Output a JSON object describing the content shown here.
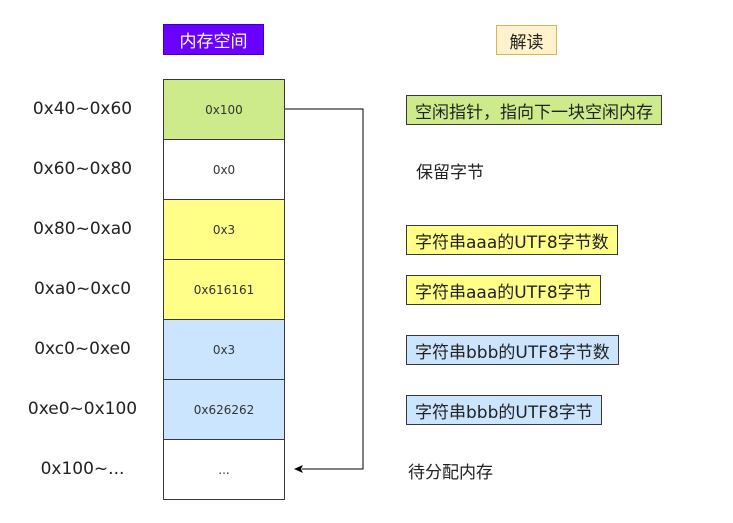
{
  "headers": {
    "memory": "内存空间",
    "interpret": "解读"
  },
  "rows": [
    {
      "addr": "0x40~0x60",
      "value": "0x100",
      "note": "空闲指针，指向下一块空闲内存",
      "color": "#cdeb8b"
    },
    {
      "addr": "0x60~0x80",
      "value": "0x0",
      "note": "保留字节",
      "color": "#ffffff"
    },
    {
      "addr": "0x80~0xa0",
      "value": "0x3",
      "note": "字符串aaa的UTF8字节数",
      "color": "#ffff88"
    },
    {
      "addr": "0xa0~0xc0",
      "value": "0x616161",
      "note": "字符串aaa的UTF8字节",
      "color": "#ffff88"
    },
    {
      "addr": "0xc0~0xe0",
      "value": "0x3",
      "note": "字符串bbb的UTF8字节数",
      "color": "#cce5ff"
    },
    {
      "addr": "0xe0~0x100",
      "value": "0x626262",
      "note": "字符串bbb的UTF8字节",
      "color": "#cce5ff"
    },
    {
      "addr": "0x100~...",
      "value": "...",
      "note": "待分配内存",
      "color": "#ffffff"
    }
  ]
}
